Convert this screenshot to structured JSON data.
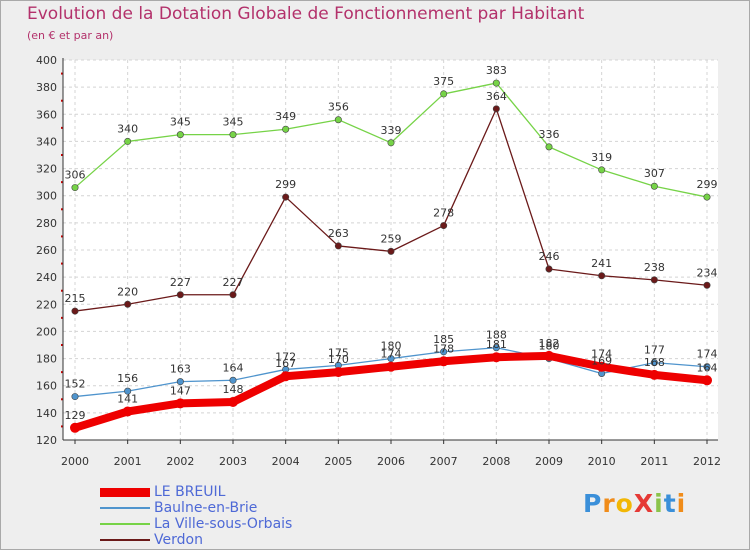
{
  "header": {
    "title": "Evolution de la Dotation Globale de Fonctionnement par Habitant",
    "subtitle": "(en € et par an)"
  },
  "logo": {
    "text": "ProXiti"
  },
  "chart_data": {
    "type": "line",
    "title": "Evolution de la Dotation Globale de Fonctionnement par Habitant",
    "subtitle": "(en € et par an)",
    "xlabel": "",
    "ylabel": "",
    "x": [
      "2000",
      "2001",
      "2002",
      "2003",
      "2004",
      "2005",
      "2006",
      "2007",
      "2008",
      "2009",
      "2010",
      "2011",
      "2012"
    ],
    "ylim": [
      120,
      400
    ],
    "yticks": [
      120,
      140,
      160,
      180,
      200,
      220,
      240,
      260,
      280,
      300,
      320,
      340,
      360,
      380,
      400
    ],
    "grid": true,
    "legend_position": "bottom-left",
    "series": [
      {
        "name": "LE BREUIL",
        "color": "#ee0000",
        "values": [
          129,
          141,
          147,
          148,
          167,
          170,
          174,
          178,
          181,
          182,
          174,
          168,
          164
        ]
      },
      {
        "name": "Baulne-en-Brie",
        "color": "#4f94cd",
        "values": [
          152,
          156,
          163,
          164,
          172,
          175,
          180,
          185,
          188,
          180,
          169,
          177,
          174
        ]
      },
      {
        "name": "La Ville-sous-Orbais",
        "color": "#76d347",
        "values": [
          306,
          340,
          345,
          345,
          349,
          356,
          339,
          375,
          383,
          336,
          319,
          307,
          299
        ]
      },
      {
        "name": "Verdon",
        "color": "#6b1a1a",
        "values": [
          215,
          220,
          227,
          227,
          299,
          263,
          259,
          278,
          364,
          246,
          241,
          238,
          234
        ]
      }
    ]
  }
}
